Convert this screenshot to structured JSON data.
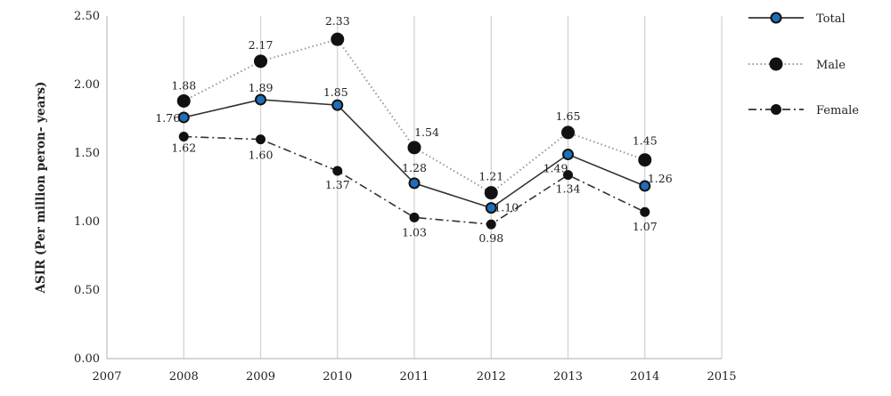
{
  "chart_data": {
    "type": "line",
    "title": "",
    "xlabel": "",
    "ylabel": "ASIR (Per million peron- years)",
    "x_ticks": [
      "2007",
      "2008",
      "2009",
      "2010",
      "2011",
      "2012",
      "2013",
      "2014",
      "2015"
    ],
    "x": [
      "2008",
      "2009",
      "2010",
      "2011",
      "2012",
      "2013",
      "2014"
    ],
    "xlim": [
      2007,
      2015
    ],
    "ylim": [
      0,
      2.5
    ],
    "y_ticks": [
      "0.00",
      "0.50",
      "1.00",
      "1.50",
      "2.00",
      "2.50"
    ],
    "grid": "vertical",
    "legend_position": "right",
    "series": [
      {
        "name": "Total",
        "style": "solid",
        "line_color": "#333333",
        "marker_color": "#1f6fb8",
        "values": [
          1.76,
          1.89,
          1.85,
          1.28,
          1.1,
          1.49,
          1.26
        ],
        "labels": [
          "1.76",
          "1.89",
          "1.85",
          "1.28",
          "1.10",
          "1.49",
          "1.26"
        ]
      },
      {
        "name": "Male",
        "style": "dotted",
        "line_color": "#999999",
        "marker_color": "#111111",
        "values": [
          1.88,
          2.17,
          2.33,
          1.54,
          1.21,
          1.65,
          1.45
        ],
        "labels": [
          "1.88",
          "2.17",
          "2.33",
          "1.54",
          "1.21",
          "1.65",
          "1.45"
        ]
      },
      {
        "name": "Female",
        "style": "dash-dot",
        "line_color": "#333333",
        "marker_color": "#111111",
        "values": [
          1.62,
          1.6,
          1.37,
          1.03,
          0.98,
          1.34,
          1.07
        ],
        "labels": [
          "1.62",
          "1.60",
          "1.37",
          "1.03",
          "0.98",
          "1.34",
          "1.07"
        ]
      }
    ]
  }
}
